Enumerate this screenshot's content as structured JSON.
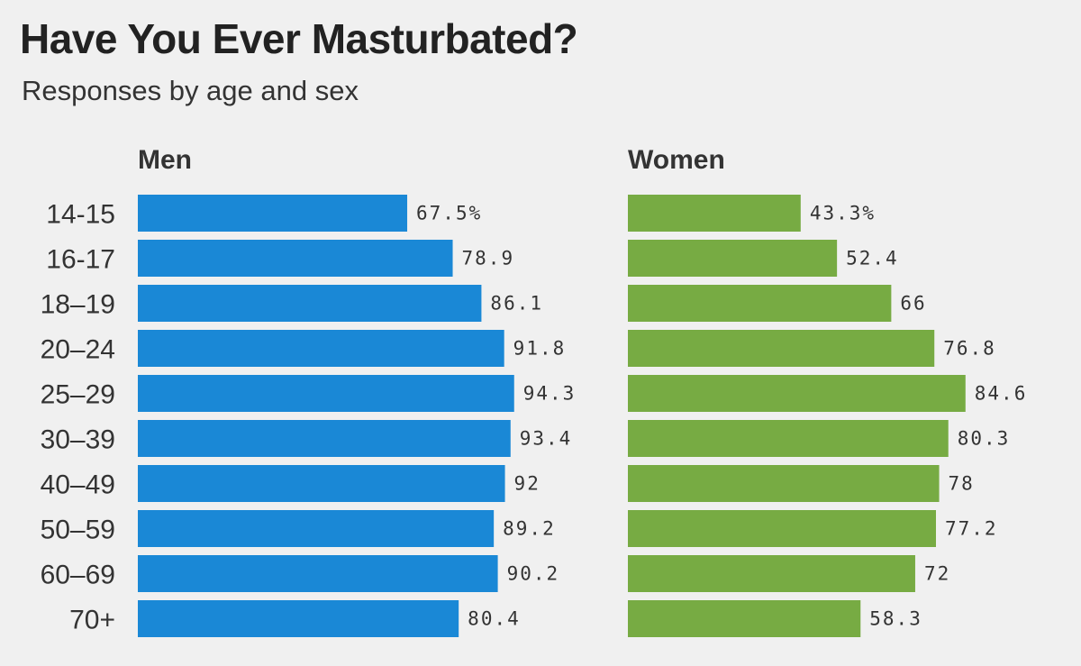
{
  "title": "Have You Ever Masturbated?",
  "subtitle": "Responses by age and sex",
  "colors": {
    "men": "#1a88d6",
    "women": "#77ab43",
    "background": "#f0f0f0"
  },
  "chart_data": {
    "type": "bar",
    "orientation": "horizontal",
    "title": "Have You Ever Masturbated?",
    "subtitle": "Responses by age and sex",
    "categories": [
      "14-15",
      "16-17",
      "18–19",
      "20–24",
      "25–29",
      "30–39",
      "40–49",
      "50–59",
      "60–69",
      "70+"
    ],
    "series": [
      {
        "name": "Men",
        "values": [
          67.5,
          78.9,
          86.1,
          91.8,
          94.3,
          93.4,
          92,
          89.2,
          90.2,
          80.4
        ],
        "labels": [
          "67.5%",
          "78.9",
          "86.1",
          "91.8",
          "94.3",
          "93.4",
          "92",
          "89.2",
          "90.2",
          "80.4"
        ]
      },
      {
        "name": "Women",
        "values": [
          43.3,
          52.4,
          66,
          76.8,
          84.6,
          80.3,
          78,
          77.2,
          72,
          58.3
        ],
        "labels": [
          "43.3%",
          "52.4",
          "66",
          "76.8",
          "84.6",
          "80.3",
          "78",
          "77.2",
          "72",
          "58.3"
        ]
      }
    ],
    "unit": "%",
    "xlim": [
      0,
      100
    ],
    "grid": false,
    "legend": "panel titles above each panel"
  }
}
